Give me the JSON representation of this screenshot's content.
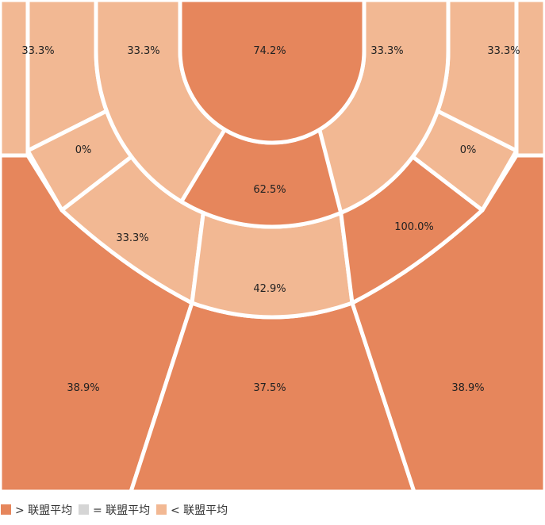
{
  "chart_data": {
    "type": "shot-chart",
    "zones": [
      {
        "id": "left-corner-three",
        "value": 33.3,
        "label": "33.3%",
        "level": "below"
      },
      {
        "id": "left-wing-three",
        "value": 38.9,
        "label": "38.9%",
        "level": "above"
      },
      {
        "id": "top-three",
        "value": 37.5,
        "label": "37.5%",
        "level": "above"
      },
      {
        "id": "right-wing-three",
        "value": 38.9,
        "label": "38.9%",
        "level": "above"
      },
      {
        "id": "right-corner-three",
        "value": 33.3,
        "label": "33.3%",
        "level": "below"
      },
      {
        "id": "left-long-baseline",
        "value": 33.3,
        "label": "33.3%",
        "level": "below"
      },
      {
        "id": "left-long-wing",
        "value": 0,
        "label": "0%",
        "level": "below"
      },
      {
        "id": "left-long-elbow",
        "value": 33.3,
        "label": "33.3%",
        "level": "below"
      },
      {
        "id": "top-long",
        "value": 42.9,
        "label": "42.9%",
        "level": "below"
      },
      {
        "id": "right-long-elbow",
        "value": 100.0,
        "label": "100.0%",
        "level": "above"
      },
      {
        "id": "right-long-wing",
        "value": 0,
        "label": "0%",
        "level": "below"
      },
      {
        "id": "right-long-baseline",
        "value": 33.3,
        "label": "33.3%",
        "level": "below"
      },
      {
        "id": "left-mid",
        "value": 33.3,
        "label": "33.3%",
        "level": "below"
      },
      {
        "id": "center-mid",
        "value": 62.5,
        "label": "62.5%",
        "level": "above"
      },
      {
        "id": "right-mid",
        "value": 33.3,
        "label": "33.3%",
        "level": "below"
      },
      {
        "id": "restricted-area",
        "value": 74.2,
        "label": "74.2%",
        "level": "above"
      }
    ],
    "legend": [
      {
        "level": "above",
        "label": "> 联盟平均",
        "color": "#e6865c"
      },
      {
        "level": "equal",
        "label": "= 联盟平均",
        "color": "#d5d5d5"
      },
      {
        "level": "below",
        "label": "< 联盟平均",
        "color": "#f2b893"
      }
    ],
    "legend_placement": "bottom-left"
  },
  "colors": {
    "above": "#e6865c",
    "equal": "#d5d5d5",
    "below": "#f2b893",
    "separator": "#ffffff"
  }
}
